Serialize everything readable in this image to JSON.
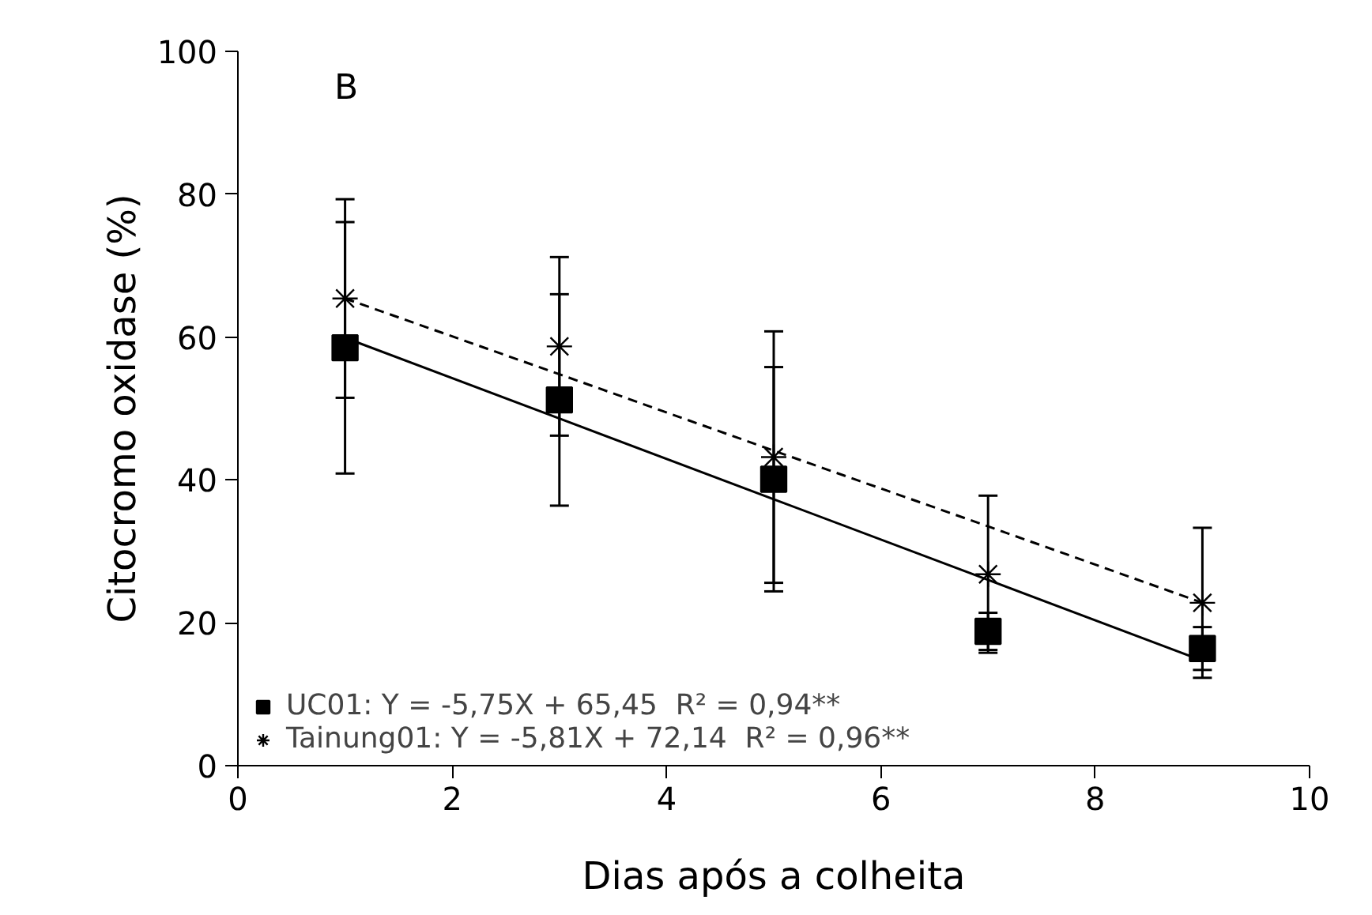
{
  "chart_data": {
    "type": "scatter",
    "xlabel": "Dias após a colheita",
    "ylabel": "Citocromo oxidase (%)",
    "annotations": [
      "B"
    ],
    "x": [
      1,
      3,
      5,
      7,
      9
    ],
    "series": [
      {
        "name": "UC01: Y = -5,75X + 65,45  R² = 0,94**",
        "color": "#000000",
        "marker": "square",
        "values": [
          58.5,
          51.2,
          40.1,
          18.8,
          16.4
        ],
        "errors": [
          17.6,
          14.8,
          15.7,
          2.6,
          3
        ]
      },
      {
        "name": "Tainung01: Y = -5,81X + 72,14  R² = 0,96**",
        "color": "#000000",
        "marker": "cross",
        "values": [
          65.4,
          58.7,
          43.2,
          26.8,
          22.8
        ],
        "errors": [
          13.9,
          12.5,
          17.6,
          11,
          10.5
        ]
      },
      {
        "type": "line",
        "color": "#000000",
        "line_style": "solid",
        "values": [
          59.9,
          48.6,
          37.3,
          26.0,
          14.7
        ]
      },
      {
        "type": "line",
        "color": "#000000",
        "line_style": "dashed",
        "values": [
          65.4,
          54.8,
          44.1,
          33.5,
          22.8
        ]
      }
    ],
    "xlim": [
      0,
      10
    ],
    "ylim": [
      0,
      100
    ],
    "xticks": [
      0,
      2,
      4,
      6,
      8,
      10
    ],
    "yticks": [
      0,
      20,
      40,
      60,
      80,
      100
    ],
    "grid": false,
    "legend": "bottom left"
  }
}
